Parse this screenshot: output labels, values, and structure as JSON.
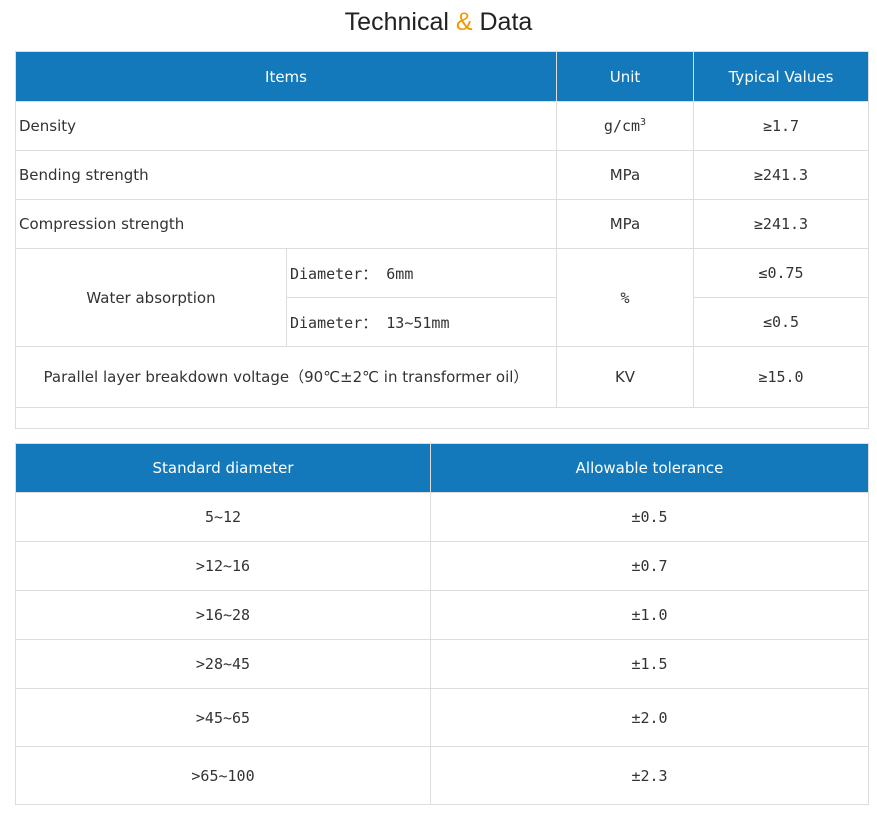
{
  "title": {
    "part1": "Technical",
    "amp": "&",
    "part2": "Data"
  },
  "technical": {
    "headers": {
      "items": "Items",
      "unit": "Unit",
      "typical": "Typical Values"
    },
    "density": {
      "label": "Density",
      "unit_base": "g/cm",
      "unit_exp": "3",
      "value": "≥1.7"
    },
    "bending": {
      "label": "Bending strength",
      "unit": "MPa",
      "value": "≥241.3"
    },
    "compression": {
      "label": "Compression strength",
      "unit": "MPa",
      "value": "≥241.3"
    },
    "water": {
      "label": "Water absorption",
      "unit": "%",
      "sub1_label": "Diameter：  6mm",
      "sub1_value": "≤0.75",
      "sub2_label": "Diameter：  13~51mm",
      "sub2_value": "≤0.5"
    },
    "breakdown": {
      "label": "Parallel layer breakdown voltage（90℃±2℃ in transformer oil）",
      "unit": "KV",
      "value": "≥15.0"
    }
  },
  "tolerance": {
    "headers": {
      "diameter": "Standard diameter",
      "tolerance": "Allowable tolerance"
    },
    "rows": [
      {
        "diameter": "5~12",
        "tolerance": "±0.5"
      },
      {
        "diameter": ">12~16",
        "tolerance": "±0.7"
      },
      {
        "diameter": ">16~28",
        "tolerance": "±1.0"
      },
      {
        "diameter": ">28~45",
        "tolerance": "±1.5"
      },
      {
        "diameter": ">45~65",
        "tolerance": "±2.0"
      },
      {
        "diameter": ">65~100",
        "tolerance": "±2.3"
      }
    ]
  }
}
